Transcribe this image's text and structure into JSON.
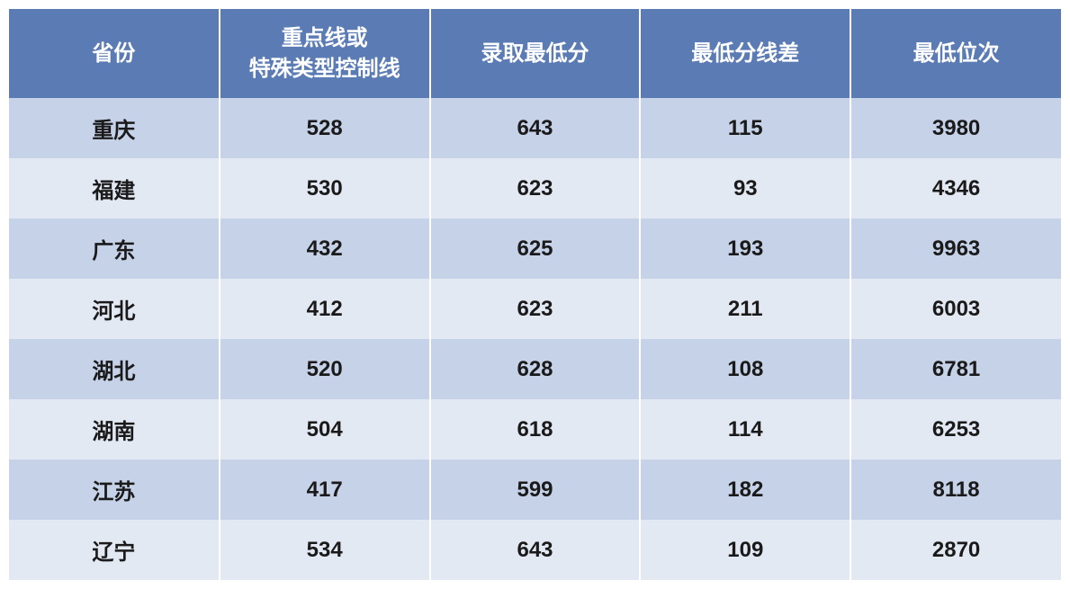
{
  "table": {
    "type": "table",
    "header_bg": "#5b7bb4",
    "header_text_color": "#ffffff",
    "row_odd_bg": "#c5d2e8",
    "row_even_bg": "#e3e9f3",
    "cell_text_color": "#1a1a1a",
    "header_fontsize": 24,
    "cell_fontsize": 24,
    "column_widths": [
      "20%",
      "20%",
      "20%",
      "20%",
      "20%"
    ],
    "columns": [
      "省份",
      "重点线或\n特殊类型控制线",
      "录取最低分",
      "最低分线差",
      "最低位次"
    ],
    "rows": [
      [
        "重庆",
        "528",
        "643",
        "115",
        "3980"
      ],
      [
        "福建",
        "530",
        "623",
        "93",
        "4346"
      ],
      [
        "广东",
        "432",
        "625",
        "193",
        "9963"
      ],
      [
        "河北",
        "412",
        "623",
        "211",
        "6003"
      ],
      [
        "湖北",
        "520",
        "628",
        "108",
        "6781"
      ],
      [
        "湖南",
        "504",
        "618",
        "114",
        "6253"
      ],
      [
        "江苏",
        "417",
        "599",
        "182",
        "8118"
      ],
      [
        "辽宁",
        "534",
        "643",
        "109",
        "2870"
      ]
    ]
  }
}
